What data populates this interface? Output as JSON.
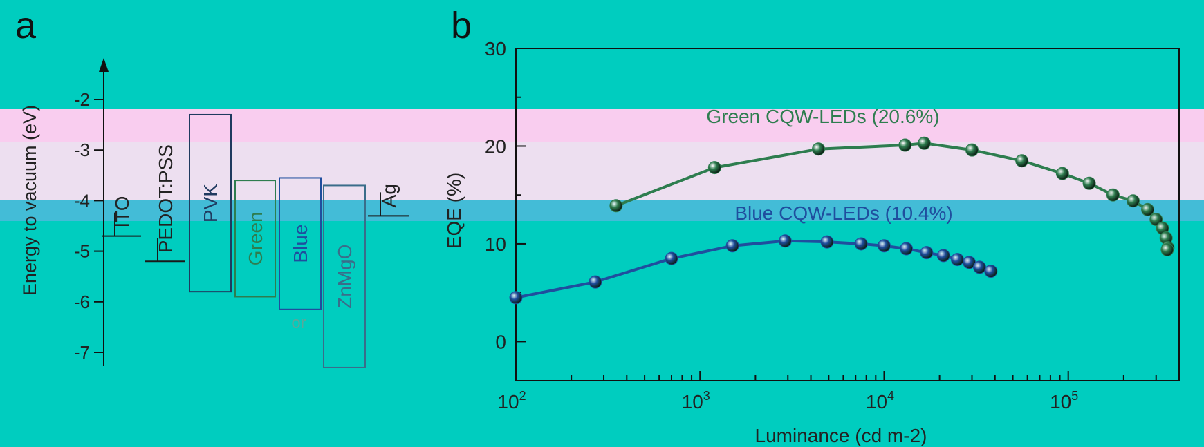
{
  "panel_a": {
    "label": "a",
    "ylabel": "Energy to vacuum (eV)",
    "y_ticks": [
      "-2",
      "-3",
      "-4",
      "-5",
      "-6",
      "-7"
    ],
    "or_text": "or",
    "layers": [
      {
        "name": "ITO",
        "top": -4.7,
        "bottom": -4.7,
        "color": "#1a1a1a"
      },
      {
        "name": "PEDOT:PSS",
        "top": -5.2,
        "bottom": -5.2,
        "color": "#1a1a1a"
      },
      {
        "name": "PVK",
        "top": -2.3,
        "bottom": -5.8,
        "color": "#1f3a5f"
      },
      {
        "name": "Green",
        "top": -3.6,
        "bottom": -5.9,
        "color": "#2e7d4f"
      },
      {
        "name": "Blue",
        "top": -3.55,
        "bottom": -6.15,
        "color": "#1f4e9e"
      },
      {
        "name": "ZnMgO",
        "top": -3.7,
        "bottom": -7.3,
        "color": "#3a6d8a"
      },
      {
        "name": "Ag",
        "top": -4.3,
        "bottom": -4.3,
        "color": "#1a1a1a"
      }
    ]
  },
  "panel_b": {
    "label": "b"
  },
  "chart_data": {
    "type": "line",
    "xlabel": "Luminance (cd m-2)",
    "ylabel": "EQE (%)",
    "xscale": "log",
    "xlim": [
      100,
      400000
    ],
    "ylim": [
      -4,
      30
    ],
    "y_ticks": [
      "0",
      "10",
      "20",
      "30"
    ],
    "x_ticks": [
      {
        "value": 100,
        "base": "10",
        "exp": "2"
      },
      {
        "value": 1000,
        "base": "10",
        "exp": "3"
      },
      {
        "value": 10000,
        "base": "10",
        "exp": "4"
      },
      {
        "value": 100000,
        "base": "10",
        "exp": "5"
      }
    ],
    "series": [
      {
        "name": "Green CQW-LEDs (20.6%)",
        "color": "#2e7d4f",
        "x": [
          350,
          1200,
          4400,
          13000,
          16500,
          30000,
          56000,
          93000,
          130000,
          175000,
          225000,
          270000,
          300000,
          325000,
          340000,
          348000,
          345000
        ],
        "y": [
          13.9,
          17.8,
          19.7,
          20.1,
          20.3,
          19.6,
          18.5,
          17.2,
          16.2,
          15.0,
          14.4,
          13.5,
          12.5,
          11.6,
          10.6,
          9.6,
          9.4
        ]
      },
      {
        "name": "Blue CQW-LEDs (10.4%)",
        "color": "#1f4e9e",
        "x": [
          100,
          270,
          700,
          1500,
          2900,
          4900,
          7500,
          10000,
          13200,
          17000,
          21000,
          25000,
          29000,
          33000,
          38000
        ],
        "y": [
          4.5,
          6.1,
          8.5,
          9.8,
          10.3,
          10.2,
          10.0,
          9.8,
          9.5,
          9.1,
          8.8,
          8.4,
          8.1,
          7.6,
          7.2
        ]
      }
    ]
  }
}
